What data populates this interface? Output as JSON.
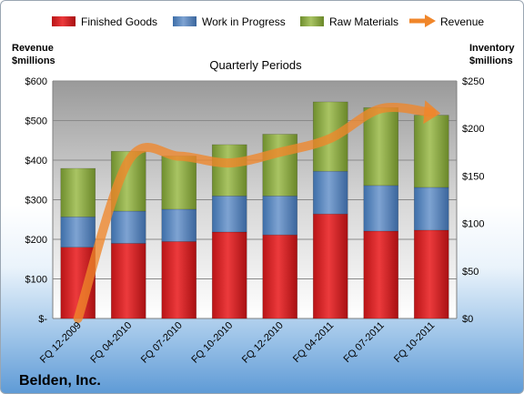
{
  "chart_data": {
    "type": "bar",
    "stacked": true,
    "subtitle": "Quarterly Periods",
    "company": "Belden, Inc.",
    "left_axis": {
      "title_line1": "Revenue",
      "title_line2": "$millions",
      "min": 0,
      "max": 600,
      "step": 100,
      "tick_labels": [
        "$-",
        "$100",
        "$200",
        "$300",
        "$400",
        "$500",
        "$600"
      ]
    },
    "right_axis": {
      "title_line1": "Inventory",
      "title_line2": "$millions",
      "min": 0,
      "max": 250,
      "step": 50,
      "tick_labels": [
        "$0",
        "$50",
        "$100",
        "$150",
        "$200",
        "$250"
      ]
    },
    "categories": [
      "FQ 12-2009",
      "FQ 04-2010",
      "FQ 07-2010",
      "FQ 10-2010",
      "FQ 12-2010",
      "FQ 04-2011",
      "FQ 07-2011",
      "FQ 10-2011"
    ],
    "series": [
      {
        "name": "Finished Goods",
        "color": "#e02428",
        "values": [
          75,
          79,
          81,
          91,
          88,
          110,
          92,
          93
        ]
      },
      {
        "name": "Work in Progress",
        "color": "#4f81bd",
        "values": [
          32,
          34,
          34,
          38,
          41,
          45,
          48,
          45
        ]
      },
      {
        "name": "Raw Materials",
        "color": "#8fae45",
        "values": [
          51,
          63,
          56,
          54,
          65,
          73,
          82,
          76
        ]
      }
    ],
    "line_series": {
      "name": "Revenue",
      "color": "#f0862a",
      "axis": "left",
      "values": [
        0,
        398,
        410,
        393,
        420,
        455,
        530,
        520
      ]
    },
    "legend_position": "top",
    "grid": true
  }
}
